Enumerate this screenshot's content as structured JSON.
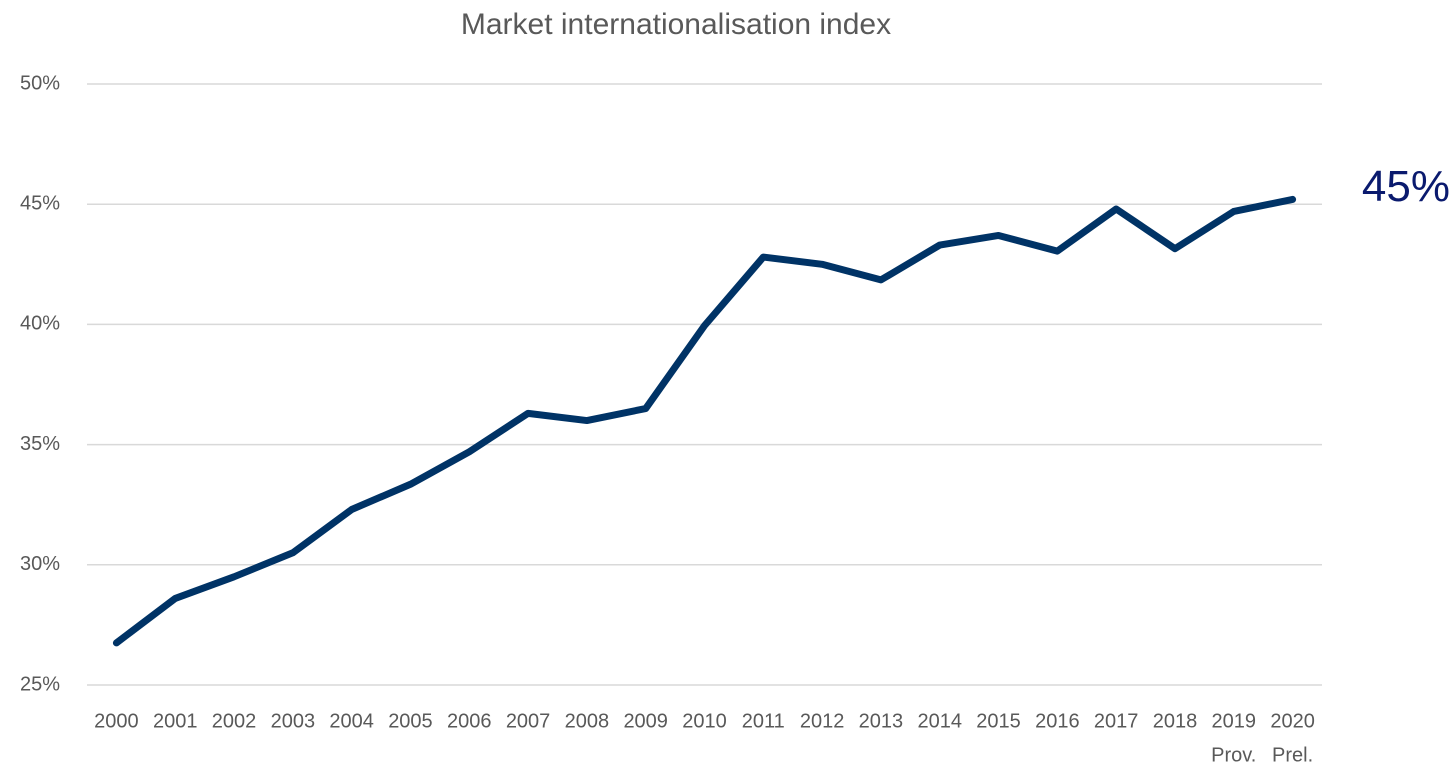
{
  "chart_data": {
    "type": "line",
    "title": "Market internationalisation index",
    "categories": [
      "2000",
      "2001",
      "2002",
      "2003",
      "2004",
      "2005",
      "2006",
      "2007",
      "2008",
      "2009",
      "2010",
      "2011",
      "2012",
      "2013",
      "2014",
      "2015",
      "2016",
      "2017",
      "2018",
      "2019",
      "2020"
    ],
    "category_notes": [
      null,
      null,
      null,
      null,
      null,
      null,
      null,
      null,
      null,
      null,
      null,
      null,
      null,
      null,
      null,
      null,
      null,
      null,
      null,
      "Prov.",
      "Prel."
    ],
    "series": [
      {
        "name": null,
        "color": "#003366",
        "values": [
          26.75,
          28.6,
          29.5,
          30.5,
          32.3,
          33.35,
          34.7,
          36.3,
          36.0,
          36.5,
          39.95,
          42.8,
          42.5,
          41.85,
          43.3,
          43.7,
          43.05,
          44.8,
          43.15,
          44.7,
          45.2
        ],
        "value_labels": [
          null,
          null,
          null,
          null,
          null,
          null,
          null,
          null,
          null,
          null,
          null,
          null,
          null,
          null,
          null,
          null,
          null,
          null,
          null,
          null,
          "45%"
        ]
      }
    ],
    "ylim": [
      25,
      50
    ],
    "yticks": [
      {
        "value": 25,
        "label": "25%"
      },
      {
        "value": 30,
        "label": "30%"
      },
      {
        "value": 35,
        "label": "35%"
      },
      {
        "value": 40,
        "label": "40%"
      },
      {
        "value": 45,
        "label": "45%"
      },
      {
        "value": 50,
        "label": "50%"
      }
    ],
    "grid": true
  }
}
